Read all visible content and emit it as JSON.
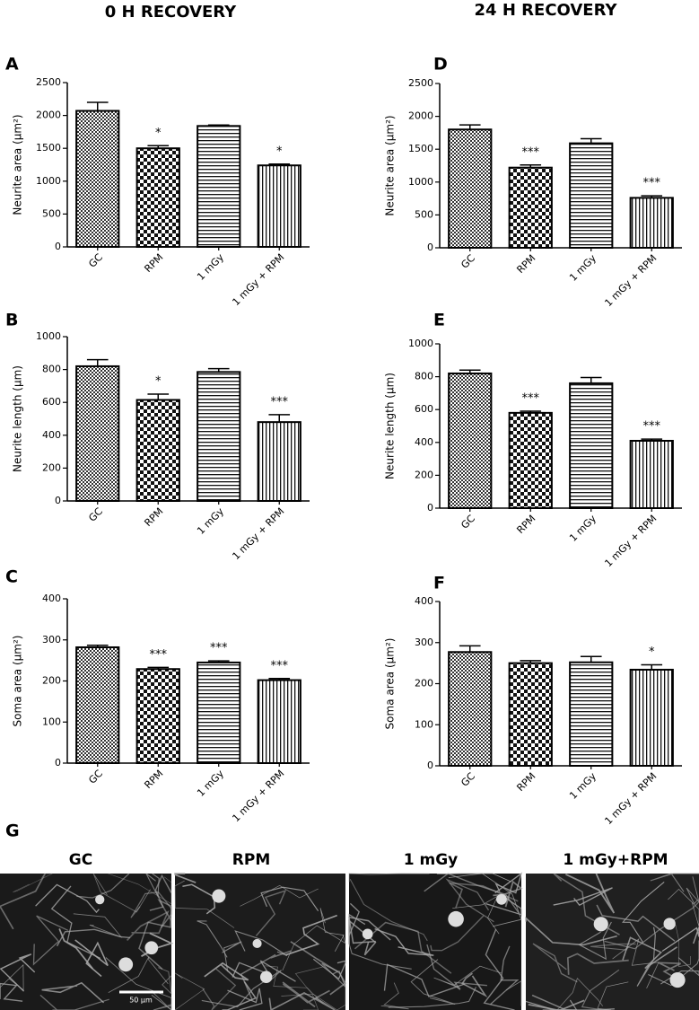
{
  "headers": [
    "0 H RECOVERY",
    "24 H RECOVERY"
  ],
  "chart_data": [
    {
      "type": "bar",
      "panel": "A",
      "ylabel": "Neurite area (µm²)",
      "categories": [
        "GC",
        "RPM",
        "1 mGy",
        "1 mGy + RPM"
      ],
      "values": [
        2070,
        1500,
        1840,
        1240
      ],
      "errors": [
        130,
        40,
        15,
        20
      ],
      "annotations": [
        null,
        "*",
        null,
        "*"
      ],
      "fills": [
        "crosshatch",
        "checker",
        "horizontal",
        "vertical"
      ],
      "ylim": [
        0,
        2500
      ],
      "yticks": [
        0,
        500,
        1000,
        1500,
        2000,
        2500
      ]
    },
    {
      "type": "bar",
      "panel": "B",
      "ylabel": "Neurite length (µm)",
      "categories": [
        "GC",
        "RPM",
        "1 mGy",
        "1 mGy + RPM"
      ],
      "values": [
        820,
        615,
        785,
        480
      ],
      "errors": [
        40,
        35,
        20,
        45
      ],
      "annotations": [
        null,
        "*",
        null,
        "***"
      ],
      "fills": [
        "crosshatch",
        "checker",
        "horizontal",
        "vertical"
      ],
      "ylim": [
        0,
        1000
      ],
      "yticks": [
        0,
        200,
        400,
        600,
        800,
        1000
      ]
    },
    {
      "type": "bar",
      "panel": "C",
      "ylabel": "Soma area (µm²)",
      "categories": [
        "GC",
        "RPM",
        "1 mGy",
        "1 mGy + RPM"
      ],
      "values": [
        282,
        229,
        245,
        202
      ],
      "errors": [
        5,
        4,
        4,
        4
      ],
      "annotations": [
        null,
        "***",
        "***",
        "***"
      ],
      "fills": [
        "crosshatch",
        "checker",
        "horizontal",
        "vertical"
      ],
      "ylim": [
        0,
        400
      ],
      "yticks": [
        0,
        100,
        200,
        300,
        400
      ]
    },
    {
      "type": "bar",
      "panel": "D",
      "ylabel": "Neurite area (µm²)",
      "categories": [
        "GC",
        "RPM",
        "1 mGy",
        "1 mGy + RPM"
      ],
      "values": [
        1800,
        1220,
        1590,
        760
      ],
      "errors": [
        70,
        40,
        70,
        30
      ],
      "annotations": [
        null,
        "***",
        null,
        "***"
      ],
      "fills": [
        "crosshatch",
        "checker",
        "horizontal",
        "vertical"
      ],
      "ylim": [
        0,
        2500
      ],
      "yticks": [
        0,
        500,
        1000,
        1500,
        2000,
        2500
      ]
    },
    {
      "type": "bar",
      "panel": "E",
      "ylabel": "Neurite length (µm)",
      "categories": [
        "GC",
        "RPM",
        "1 mGy",
        "1 mGy + RPM"
      ],
      "values": [
        820,
        580,
        760,
        410
      ],
      "errors": [
        20,
        10,
        35,
        10
      ],
      "annotations": [
        null,
        "***",
        null,
        "***"
      ],
      "fills": [
        "crosshatch",
        "checker",
        "horizontal",
        "vertical"
      ],
      "ylim": [
        0,
        1000
      ],
      "yticks": [
        0,
        200,
        400,
        600,
        800,
        1000
      ]
    },
    {
      "type": "bar",
      "panel": "F",
      "ylabel": "Soma area (µm²)",
      "categories": [
        "GC",
        "RPM",
        "1 mGy",
        "1 mGy + RPM"
      ],
      "values": [
        277,
        250,
        252,
        234
      ],
      "errors": [
        15,
        6,
        14,
        12
      ],
      "annotations": [
        null,
        null,
        null,
        "*"
      ],
      "fills": [
        "crosshatch",
        "checker",
        "horizontal",
        "vertical"
      ],
      "ylim": [
        0,
        400
      ],
      "yticks": [
        0,
        100,
        200,
        300,
        400
      ]
    }
  ],
  "panel_g": {
    "letter": "G",
    "images": [
      "GC",
      "RPM",
      "1 mGy",
      "1 mGy+RPM"
    ],
    "scale_bar": "50 µm"
  }
}
